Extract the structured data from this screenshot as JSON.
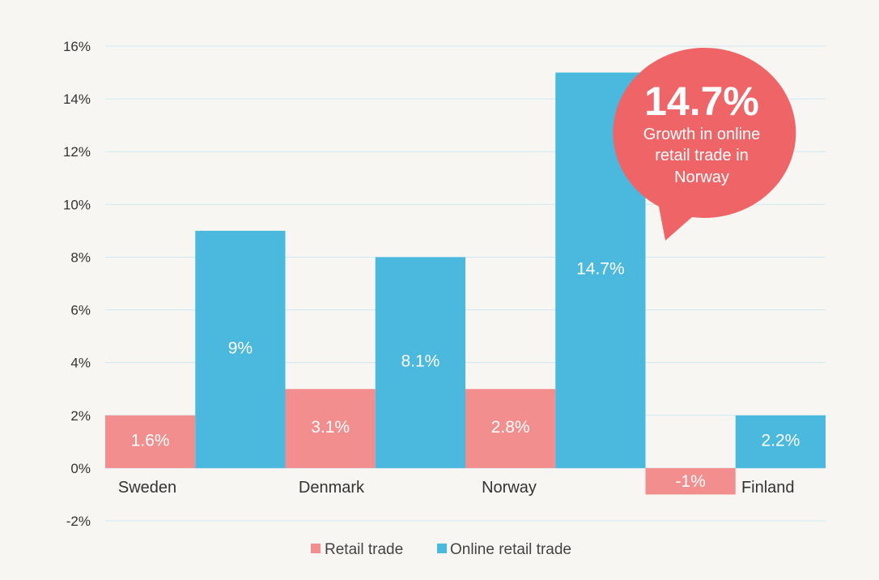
{
  "chart_data": {
    "type": "bar",
    "title": "",
    "xlabel": "",
    "ylabel": "",
    "categories": [
      "Sweden",
      "Denmark",
      "Norway",
      "Finland"
    ],
    "series": [
      {
        "name": "Retail trade",
        "color": "#f28e8e",
        "values": [
          2,
          3,
          3,
          -1
        ],
        "data_labels": [
          "1.6%",
          "3.1%",
          "2.8%",
          "-1%"
        ]
      },
      {
        "name": "Online retail trade",
        "color": "#4bb8de",
        "values": [
          9,
          8,
          15,
          2
        ],
        "data_labels": [
          "9%",
          "8.1%",
          "14.7%",
          "2.2%"
        ]
      }
    ],
    "ylim": [
      -2,
      16
    ],
    "yticks": [
      -2,
      0,
      2,
      4,
      6,
      8,
      10,
      12,
      14,
      16
    ],
    "ytick_labels": [
      "-2%",
      "0%",
      "2%",
      "4%",
      "6%",
      "8%",
      "10%",
      "12%",
      "14%",
      "16%"
    ],
    "grid": true,
    "legend_position": "bottom",
    "annotation": {
      "headline": "14.7%",
      "lines": [
        "Growth in online",
        "retail trade in",
        "Norway"
      ],
      "color": "#ef6466"
    }
  }
}
